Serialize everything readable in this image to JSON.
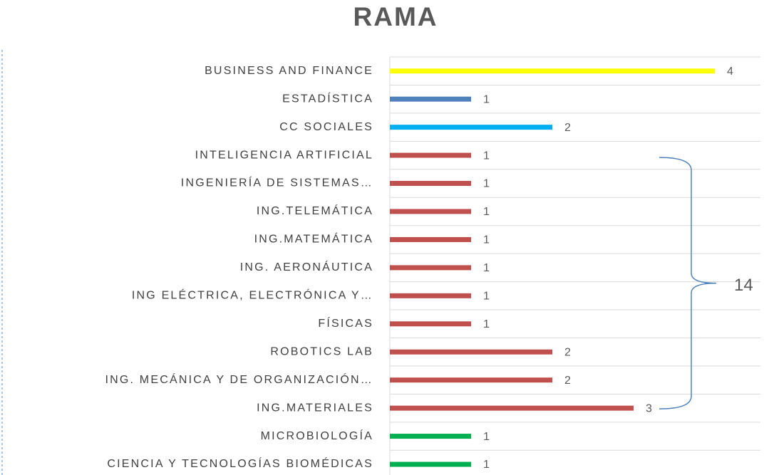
{
  "chart_data": {
    "type": "hbar",
    "title": "RAMA",
    "categories": [
      "BUSINESS AND FINANCE",
      "ESTADÍSTICA",
      "CC SOCIALES",
      "INTELIGENCIA ARTIFICIAL",
      "INGENIERÍA DE SISTEMAS…",
      "ING.TELEMÁTICA",
      "ING.MATEMÁTICA",
      "ING. AERONÁUTICA",
      "ING ELÉCTRICA, ELECTRÓNICA Y…",
      "FÍSICAS",
      "ROBOTICS LAB",
      "ING. MECÁNICA Y DE ORGANIZACIÓN…",
      "ING.MATERIALES",
      "MICROBIOLOGÍA",
      "CIENCIA Y TECNOLOGÍAS BIOMÉDICAS"
    ],
    "values": [
      4,
      1,
      2,
      1,
      1,
      1,
      1,
      1,
      1,
      1,
      2,
      2,
      3,
      1,
      1
    ],
    "colors": [
      "#ffff00",
      "#4f81bd",
      "#00b0f0",
      "#c0504d",
      "#c0504d",
      "#c0504d",
      "#c0504d",
      "#c0504d",
      "#c0504d",
      "#c0504d",
      "#c0504d",
      "#c0504d",
      "#c0504d",
      "#00b050",
      "#00b050"
    ],
    "xlim": [
      0,
      4.5
    ],
    "grid": true,
    "annotation": "14"
  }
}
